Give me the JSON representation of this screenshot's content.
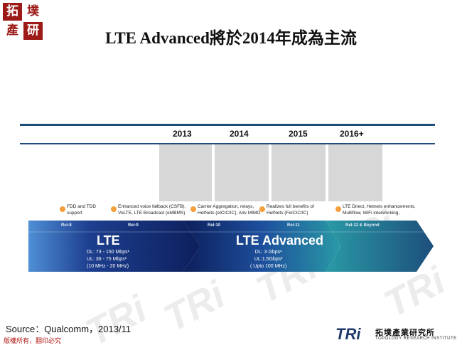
{
  "logo": {
    "chars": [
      "拓",
      "墣",
      "產",
      "研"
    ],
    "color": "#9c1a17"
  },
  "title": "LTE Advanced將於2014年成為主流",
  "watermark": "TRi",
  "timeline": {
    "years": [
      "2013",
      "2014",
      "2015",
      "2016+"
    ],
    "features": [
      {
        "lines": [
          "FDD and TDD",
          "support"
        ]
      },
      {
        "lines": [
          "Enhanced voice fallback (CSFB),",
          "VoLTE, LTE Broadcast (eMBMS)"
        ]
      },
      {
        "lines": [
          "Carrier Aggregation, relays,",
          "HetNets (eICIC/IC), Adv MIMO"
        ]
      },
      {
        "lines": [
          "Realizes full benefits of",
          "HetNets (FeICIC/IC)"
        ]
      },
      {
        "lines": [
          "LTE Direct, Hetnets enhancements,",
          "Multiflow, WiFi interworking,"
        ]
      }
    ],
    "releases": [
      "Rel-8",
      "Rel-9",
      "Rel-10",
      "Rel-11",
      "Rel-12 & Beyond"
    ],
    "lte": {
      "name": "LTE",
      "specs": [
        "DL: 73 - 150 Mbps¹",
        "UL: 36 - 75 Mbps¹",
        "(10 MHz - 20 MHz)"
      ]
    },
    "lte_advanced": {
      "name": "LTE Advanced",
      "specs": [
        "DL: 3 Gbps²",
        "UL:1.5Gbps²",
        "( Upto 100 MHz)"
      ]
    },
    "colors": {
      "dark_blue": "#102a6b",
      "blue": "#1d3f8f",
      "teal": "#2a9aa6",
      "dot": "#f2a03d",
      "line": "#1d4d78"
    }
  },
  "source": "Source：Qualcomm，2013/11",
  "copyright": "版權所有，翻印必究",
  "footer_logo": {
    "mark": "TRi",
    "name": "拓墣產業研究所",
    "english": "TOPOLOGY RESEARCH INSTITUTE"
  }
}
